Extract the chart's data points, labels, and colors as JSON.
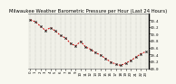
{
  "title": "Milwaukee Weather Barometric Pressure per Hour (Last 24 Hours)",
  "pressure_values": [
    30.41,
    30.35,
    30.22,
    30.1,
    30.18,
    30.08,
    29.95,
    29.88,
    29.72,
    29.65,
    29.78,
    29.62,
    29.55,
    29.45,
    29.38,
    29.28,
    29.18,
    29.12,
    29.08,
    29.15,
    29.22,
    29.32,
    29.42,
    29.48
  ],
  "ylim_min": 29.0,
  "ylim_max": 30.6,
  "ytick_values": [
    29.0,
    29.2,
    29.4,
    29.6,
    29.8,
    30.0,
    30.2,
    30.4
  ],
  "ytick_labels": [
    "29.0",
    "29.2",
    "29.4",
    "29.6",
    "29.8",
    "30.0",
    "30.2",
    "30.4"
  ],
  "line_color": "#cc0000",
  "marker_color": "#111111",
  "bg_color": "#f8f8f0",
  "plot_bg_color": "#f0f0e8",
  "grid_color": "#888888",
  "border_color": "#000000",
  "title_fontsize": 3.8,
  "tick_fontsize": 2.8,
  "line_width": 0.7,
  "marker_size": 1.5,
  "marker_style": "x"
}
